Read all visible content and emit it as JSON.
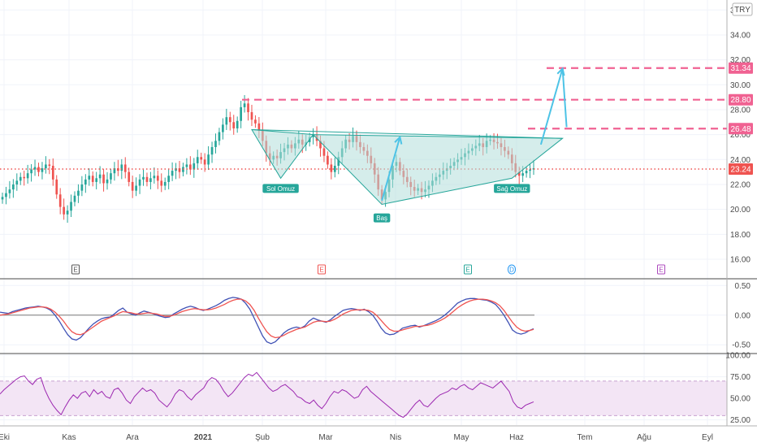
{
  "currency": "TRY",
  "colors": {
    "up": "#26a69a",
    "down": "#ef5350",
    "current": "#ef5350",
    "level": "#f06292",
    "pattern_fill": "#b2dfdb",
    "pattern_stroke": "#26a69a",
    "arrow": "#4dc3e6",
    "macd": "#3f51b5",
    "signal": "#ef5350",
    "rsi": "#9c27b0",
    "rsi_band": "#f3e5f5"
  },
  "chart_data": [
    {
      "panel": "price",
      "type": "candlestick",
      "ylim": [
        14.5,
        36.8
      ],
      "yticks": [
        "16.00",
        "18.00",
        "20.00",
        "22.00",
        "24.00",
        "26.00",
        "28.00",
        "30.00",
        "32.00",
        "34.00",
        "36.00"
      ],
      "current_price": "23.24",
      "levels": [
        "26.48",
        "28.80",
        "31.34"
      ],
      "closes": [
        21.0,
        21.3,
        21.6,
        22.0,
        22.3,
        22.6,
        22.5,
        22.9,
        23.2,
        23.4,
        23.0,
        23.3,
        23.6,
        23.5,
        22.4,
        21.2,
        20.2,
        19.6,
        19.9,
        20.6,
        21.1,
        21.5,
        22.0,
        22.4,
        22.7,
        22.2,
        22.5,
        22.8,
        22.1,
        22.4,
        22.9,
        23.3,
        23.1,
        23.6,
        23.0,
        22.2,
        21.5,
        21.9,
        22.4,
        22.6,
        22.2,
        22.5,
        22.7,
        22.3,
        21.9,
        22.2,
        22.7,
        23.1,
        23.3,
        23.0,
        23.4,
        23.6,
        23.2,
        23.7,
        24.2,
        24.0,
        23.6,
        24.4,
        25.0,
        25.5,
        26.2,
        26.8,
        27.4,
        27.0,
        26.5,
        27.1,
        28.2,
        28.5,
        27.8,
        27.2,
        26.9,
        26.3,
        25.5,
        24.5,
        24.0,
        24.3,
        24.1,
        24.6,
        24.9,
        25.2,
        24.9,
        25.3,
        25.6,
        25.2,
        25.4,
        25.8,
        26.0,
        25.5,
        24.9,
        24.3,
        23.6,
        23.0,
        23.5,
        24.2,
        24.9,
        25.6,
        25.4,
        25.9,
        25.4,
        25.0,
        24.7,
        24.3,
        23.7,
        22.8,
        21.6,
        20.8,
        21.4,
        22.4,
        23.5,
        23.8,
        23.1,
        22.6,
        22.2,
        21.8,
        21.5,
        21.7,
        21.4,
        21.6,
        21.9,
        22.3,
        22.6,
        22.8,
        23.1,
        23.3,
        23.5,
        23.8,
        24.0,
        24.2,
        24.5,
        24.7,
        24.9,
        25.1,
        25.3,
        25.0,
        25.5,
        25.6,
        25.4,
        25.3,
        25.0,
        24.7,
        24.4,
        23.7,
        23.0,
        22.7,
        22.9,
        23.1,
        23.2,
        23.3
      ],
      "pattern_labels": [
        "Sol Omuz",
        "Baş",
        "Sağ Omuz"
      ],
      "events": [
        "E",
        "E",
        "E",
        "D",
        "E"
      ]
    },
    {
      "panel": "macd",
      "type": "line",
      "ylim": [
        -0.62,
        0.6
      ],
      "yticks": [
        "0.50",
        "0.00",
        "-0.50"
      ],
      "series": [
        {
          "values": [
            0.05,
            0.04,
            0.03,
            0.06,
            0.08,
            0.1,
            0.12,
            0.13,
            0.14,
            0.15,
            0.14,
            0.12,
            0.08,
            0.0,
            -0.1,
            -0.22,
            -0.33,
            -0.4,
            -0.42,
            -0.38,
            -0.3,
            -0.22,
            -0.15,
            -0.1,
            -0.06,
            -0.04,
            -0.03,
            0.02,
            0.08,
            0.12,
            0.05,
            0.02,
            0.0,
            0.04,
            0.07,
            0.05,
            0.03,
            0.0,
            -0.02,
            -0.04,
            -0.03,
            0.02,
            0.06,
            0.1,
            0.13,
            0.15,
            0.13,
            0.1,
            0.08,
            0.1,
            0.13,
            0.16,
            0.2,
            0.25,
            0.28,
            0.3,
            0.29,
            0.27,
            0.2,
            0.1,
            -0.05,
            -0.2,
            -0.35,
            -0.45,
            -0.48,
            -0.45,
            -0.38,
            -0.3,
            -0.25,
            -0.22,
            -0.2,
            -0.22,
            -0.18,
            -0.1,
            -0.05,
            -0.08,
            -0.1,
            -0.12,
            -0.08,
            -0.02,
            0.03,
            0.08,
            0.1,
            0.11,
            0.1,
            0.08,
            0.1,
            0.06,
            0.0,
            -0.1,
            -0.22,
            -0.3,
            -0.33,
            -0.32,
            -0.28,
            -0.22,
            -0.2,
            -0.18,
            -0.17,
            -0.2,
            -0.18,
            -0.15,
            -0.12,
            -0.09,
            -0.05,
            0.0,
            0.06,
            0.13,
            0.2,
            0.24,
            0.27,
            0.28,
            0.28,
            0.27,
            0.26,
            0.25,
            0.22,
            0.18,
            0.1,
            0.0,
            -0.12,
            -0.25,
            -0.3,
            -0.32,
            -0.3,
            -0.26,
            -0.23
          ]
        },
        {
          "values": [
            0.0,
            0.01,
            0.02,
            0.04,
            0.06,
            0.08,
            0.1,
            0.12,
            0.13,
            0.14,
            0.14,
            0.13,
            0.1,
            0.05,
            -0.02,
            -0.1,
            -0.2,
            -0.28,
            -0.32,
            -0.33,
            -0.3,
            -0.25,
            -0.2,
            -0.15,
            -0.1,
            -0.07,
            -0.04,
            -0.01,
            0.03,
            0.06,
            0.05,
            0.04,
            0.02,
            0.02,
            0.03,
            0.04,
            0.03,
            0.02,
            0.0,
            -0.02,
            -0.02,
            0.0,
            0.03,
            0.06,
            0.08,
            0.1,
            0.11,
            0.1,
            0.09,
            0.09,
            0.1,
            0.12,
            0.15,
            0.18,
            0.22,
            0.25,
            0.27,
            0.27,
            0.24,
            0.18,
            0.08,
            -0.05,
            -0.17,
            -0.28,
            -0.35,
            -0.38,
            -0.37,
            -0.34,
            -0.3,
            -0.27,
            -0.24,
            -0.22,
            -0.2,
            -0.16,
            -0.12,
            -0.1,
            -0.1,
            -0.11,
            -0.1,
            -0.07,
            -0.03,
            0.02,
            0.05,
            0.08,
            0.09,
            0.09,
            0.09,
            0.08,
            0.05,
            -0.01,
            -0.09,
            -0.17,
            -0.24,
            -0.27,
            -0.27,
            -0.25,
            -0.23,
            -0.21,
            -0.19,
            -0.19,
            -0.18,
            -0.17,
            -0.15,
            -0.12,
            -0.09,
            -0.05,
            0.0,
            0.06,
            0.12,
            0.17,
            0.21,
            0.24,
            0.26,
            0.27,
            0.27,
            0.26,
            0.24,
            0.21,
            0.16,
            0.08,
            -0.02,
            -0.12,
            -0.2,
            -0.25,
            -0.27,
            -0.26,
            -0.24
          ]
        }
      ]
    },
    {
      "panel": "rsi",
      "type": "line",
      "ylim": [
        19,
        101
      ],
      "yticks": [
        "100.00",
        "75.00",
        "50.00",
        "25.00"
      ],
      "band": [
        30,
        70
      ],
      "series": [
        {
          "values": [
            55,
            60,
            64,
            68,
            72,
            75,
            76,
            70,
            66,
            72,
            74,
            60,
            50,
            42,
            36,
            31,
            40,
            48,
            54,
            50,
            56,
            58,
            52,
            60,
            55,
            58,
            52,
            50,
            60,
            62,
            56,
            48,
            44,
            52,
            57,
            62,
            58,
            60,
            56,
            48,
            44,
            40,
            46,
            55,
            60,
            58,
            52,
            48,
            54,
            58,
            62,
            70,
            74,
            72,
            66,
            58,
            52,
            56,
            62,
            68,
            74,
            78,
            76,
            80,
            74,
            68,
            62,
            58,
            60,
            64,
            66,
            62,
            58,
            52,
            50,
            46,
            44,
            48,
            42,
            38,
            44,
            52,
            58,
            56,
            60,
            58,
            54,
            50,
            52,
            60,
            64,
            58,
            54,
            50,
            46,
            42,
            38,
            34,
            30,
            28,
            32,
            38,
            44,
            48,
            42,
            40,
            45,
            50,
            54,
            56,
            58,
            62,
            60,
            64,
            66,
            62,
            60,
            64,
            68,
            66,
            64,
            62,
            66,
            70,
            64,
            58,
            46,
            40,
            38,
            42,
            44,
            46
          ]
        }
      ]
    }
  ],
  "time_axis": [
    "Eki",
    "Kas",
    "Ara",
    "2021",
    "Şub",
    "Mar",
    "Nis",
    "May",
    "Haz",
    "Tem",
    "Ağu",
    "Eyl"
  ]
}
